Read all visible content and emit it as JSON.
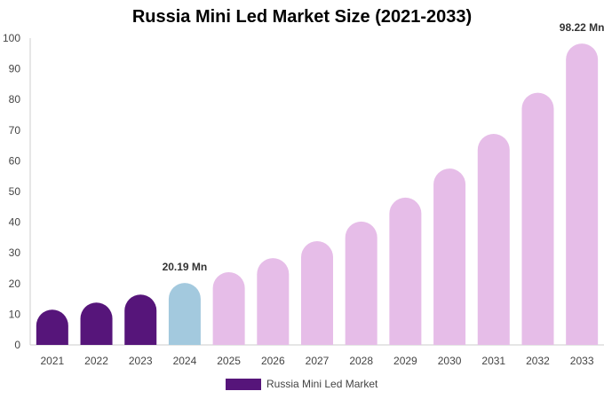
{
  "chart_data": {
    "type": "bar",
    "title": "Russia Mini Led Market Size (2021-2033)",
    "xlabel": "",
    "ylabel": "",
    "ylim": [
      0,
      100
    ],
    "yticks": [
      0,
      10,
      20,
      30,
      40,
      50,
      60,
      70,
      80,
      90,
      100
    ],
    "categories": [
      "2021",
      "2022",
      "2023",
      "2024",
      "2025",
      "2026",
      "2027",
      "2028",
      "2029",
      "2030",
      "2031",
      "2032",
      "2033"
    ],
    "series": [
      {
        "name": "Russia Mini Led Market",
        "values": [
          11.5,
          13.8,
          16.4,
          20.19,
          23.7,
          28.3,
          33.8,
          40.2,
          48.0,
          57.5,
          68.8,
          82.2,
          98.22
        ],
        "data_labels": {
          "3": "20.19 Mn",
          "12": "98.22 Mn"
        }
      }
    ],
    "colors": {
      "historical": "#56157a",
      "base_year": "#a3c9de",
      "forecast": "#e6bde8",
      "axis": "#cccccc"
    },
    "legend": {
      "placement": "bottom-center",
      "label": "Russia Mini Led Market",
      "color": "#56157a"
    },
    "grid": false
  }
}
